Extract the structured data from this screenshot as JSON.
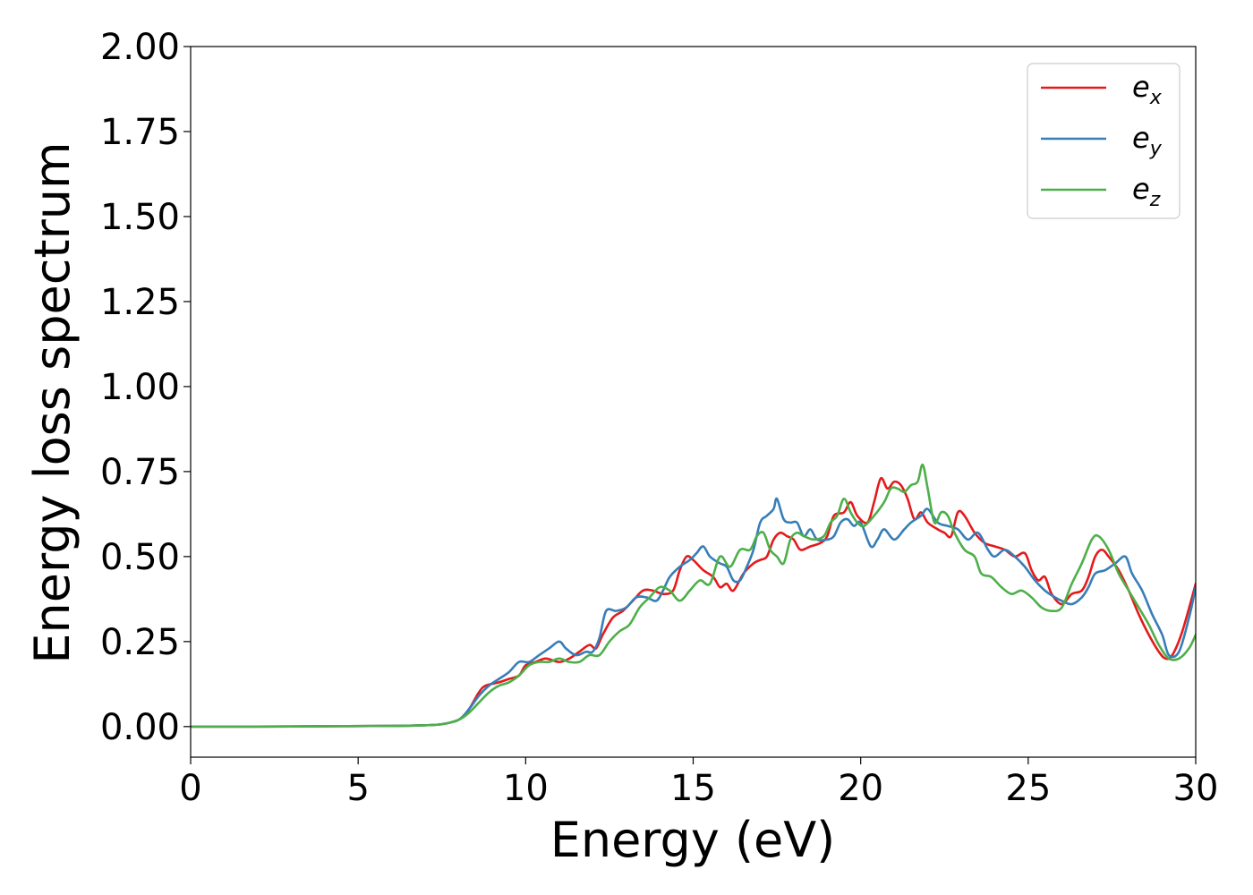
{
  "chart_data": {
    "type": "line",
    "title": "",
    "xlabel": "Energy (eV)",
    "ylabel": "Energy loss spectrum",
    "xlim": [
      0,
      30
    ],
    "ylim": [
      -0.09,
      2.0
    ],
    "xticks": [
      "0",
      "5",
      "10",
      "15",
      "20",
      "25",
      "30"
    ],
    "yticks": [
      "0.00",
      "0.25",
      "0.50",
      "0.75",
      "1.00",
      "1.25",
      "1.50",
      "1.75",
      "2.00"
    ],
    "grid": false,
    "legend_position": "top-right",
    "series": [
      {
        "name": "e_x",
        "legend_base": "e",
        "legend_sub": "x",
        "color": "#e41a1c",
        "points": [
          [
            0,
            0
          ],
          [
            2,
            0
          ],
          [
            4,
            0.001
          ],
          [
            6,
            0.002
          ],
          [
            7,
            0.004
          ],
          [
            7.5,
            0.007
          ],
          [
            8,
            0.02
          ],
          [
            8.3,
            0.05
          ],
          [
            8.6,
            0.1
          ],
          [
            8.8,
            0.12
          ],
          [
            9.2,
            0.13
          ],
          [
            9.5,
            0.14
          ],
          [
            9.8,
            0.15
          ],
          [
            10,
            0.18
          ],
          [
            10.3,
            0.19
          ],
          [
            10.6,
            0.2
          ],
          [
            11,
            0.19
          ],
          [
            11.3,
            0.2
          ],
          [
            11.6,
            0.22
          ],
          [
            11.9,
            0.24
          ],
          [
            12.1,
            0.23
          ],
          [
            12.3,
            0.27
          ],
          [
            12.6,
            0.32
          ],
          [
            12.9,
            0.34
          ],
          [
            13.2,
            0.37
          ],
          [
            13.5,
            0.4
          ],
          [
            13.8,
            0.4
          ],
          [
            14.1,
            0.39
          ],
          [
            14.4,
            0.4
          ],
          [
            14.6,
            0.46
          ],
          [
            14.8,
            0.5
          ],
          [
            15,
            0.49
          ],
          [
            15.3,
            0.46
          ],
          [
            15.6,
            0.44
          ],
          [
            15.8,
            0.41
          ],
          [
            16.0,
            0.42
          ],
          [
            16.2,
            0.4
          ],
          [
            16.5,
            0.45
          ],
          [
            16.8,
            0.48
          ],
          [
            17.0,
            0.49
          ],
          [
            17.2,
            0.5
          ],
          [
            17.4,
            0.55
          ],
          [
            17.6,
            0.57
          ],
          [
            17.8,
            0.56
          ],
          [
            18.0,
            0.55
          ],
          [
            18.2,
            0.52
          ],
          [
            18.5,
            0.53
          ],
          [
            18.8,
            0.54
          ],
          [
            19.0,
            0.56
          ],
          [
            19.2,
            0.62
          ],
          [
            19.5,
            0.63
          ],
          [
            19.7,
            0.66
          ],
          [
            19.9,
            0.62
          ],
          [
            20.2,
            0.6
          ],
          [
            20.4,
            0.66
          ],
          [
            20.6,
            0.73
          ],
          [
            20.8,
            0.7
          ],
          [
            21.0,
            0.72
          ],
          [
            21.2,
            0.71
          ],
          [
            21.4,
            0.67
          ],
          [
            21.6,
            0.61
          ],
          [
            21.8,
            0.63
          ],
          [
            22.0,
            0.6
          ],
          [
            22.3,
            0.58
          ],
          [
            22.5,
            0.57
          ],
          [
            22.7,
            0.56
          ],
          [
            22.9,
            0.63
          ],
          [
            23.1,
            0.62
          ],
          [
            23.4,
            0.57
          ],
          [
            23.7,
            0.54
          ],
          [
            24.0,
            0.53
          ],
          [
            24.3,
            0.52
          ],
          [
            24.6,
            0.5
          ],
          [
            24.9,
            0.51
          ],
          [
            25.1,
            0.46
          ],
          [
            25.3,
            0.43
          ],
          [
            25.5,
            0.44
          ],
          [
            25.7,
            0.39
          ],
          [
            26.0,
            0.36
          ],
          [
            26.3,
            0.39
          ],
          [
            26.6,
            0.4
          ],
          [
            26.8,
            0.44
          ],
          [
            27.0,
            0.5
          ],
          [
            27.2,
            0.52
          ],
          [
            27.4,
            0.5
          ],
          [
            27.7,
            0.46
          ],
          [
            28.0,
            0.4
          ],
          [
            28.3,
            0.33
          ],
          [
            28.6,
            0.27
          ],
          [
            28.9,
            0.22
          ],
          [
            29.1,
            0.2
          ],
          [
            29.3,
            0.21
          ],
          [
            29.6,
            0.28
          ],
          [
            30,
            0.42
          ]
        ]
      },
      {
        "name": "e_y",
        "legend_base": "e",
        "legend_sub": "y",
        "color": "#377eb8",
        "points": [
          [
            0,
            0
          ],
          [
            2,
            0
          ],
          [
            4,
            0.001
          ],
          [
            6,
            0.002
          ],
          [
            7,
            0.004
          ],
          [
            7.5,
            0.007
          ],
          [
            8,
            0.02
          ],
          [
            8.3,
            0.05
          ],
          [
            8.6,
            0.09
          ],
          [
            8.9,
            0.12
          ],
          [
            9.2,
            0.14
          ],
          [
            9.5,
            0.16
          ],
          [
            9.8,
            0.19
          ],
          [
            10.1,
            0.19
          ],
          [
            10.4,
            0.21
          ],
          [
            10.7,
            0.23
          ],
          [
            11.0,
            0.25
          ],
          [
            11.2,
            0.23
          ],
          [
            11.5,
            0.21
          ],
          [
            11.8,
            0.22
          ],
          [
            12.0,
            0.22
          ],
          [
            12.2,
            0.26
          ],
          [
            12.4,
            0.34
          ],
          [
            12.7,
            0.34
          ],
          [
            13.0,
            0.35
          ],
          [
            13.3,
            0.38
          ],
          [
            13.6,
            0.38
          ],
          [
            13.9,
            0.37
          ],
          [
            14.1,
            0.4
          ],
          [
            14.3,
            0.44
          ],
          [
            14.6,
            0.47
          ],
          [
            14.9,
            0.49
          ],
          [
            15.1,
            0.51
          ],
          [
            15.3,
            0.53
          ],
          [
            15.5,
            0.5
          ],
          [
            15.8,
            0.48
          ],
          [
            16.0,
            0.47
          ],
          [
            16.2,
            0.43
          ],
          [
            16.4,
            0.43
          ],
          [
            16.6,
            0.47
          ],
          [
            16.8,
            0.52
          ],
          [
            17.0,
            0.6
          ],
          [
            17.2,
            0.62
          ],
          [
            17.4,
            0.64
          ],
          [
            17.5,
            0.67
          ],
          [
            17.7,
            0.61
          ],
          [
            17.9,
            0.6
          ],
          [
            18.1,
            0.6
          ],
          [
            18.3,
            0.56
          ],
          [
            18.5,
            0.58
          ],
          [
            18.7,
            0.55
          ],
          [
            19.0,
            0.55
          ],
          [
            19.2,
            0.56
          ],
          [
            19.4,
            0.6
          ],
          [
            19.6,
            0.61
          ],
          [
            19.8,
            0.59
          ],
          [
            20.0,
            0.6
          ],
          [
            20.3,
            0.53
          ],
          [
            20.5,
            0.55
          ],
          [
            20.7,
            0.58
          ],
          [
            21.0,
            0.55
          ],
          [
            21.3,
            0.58
          ],
          [
            21.5,
            0.6
          ],
          [
            21.8,
            0.62
          ],
          [
            22.0,
            0.64
          ],
          [
            22.3,
            0.6
          ],
          [
            22.6,
            0.59
          ],
          [
            22.9,
            0.58
          ],
          [
            23.2,
            0.55
          ],
          [
            23.5,
            0.57
          ],
          [
            23.8,
            0.52
          ],
          [
            24.0,
            0.5
          ],
          [
            24.3,
            0.52
          ],
          [
            24.6,
            0.5
          ],
          [
            24.9,
            0.47
          ],
          [
            25.2,
            0.43
          ],
          [
            25.5,
            0.4
          ],
          [
            25.8,
            0.38
          ],
          [
            26.0,
            0.37
          ],
          [
            26.3,
            0.36
          ],
          [
            26.6,
            0.38
          ],
          [
            26.8,
            0.41
          ],
          [
            27.0,
            0.45
          ],
          [
            27.3,
            0.46
          ],
          [
            27.6,
            0.48
          ],
          [
            27.9,
            0.5
          ],
          [
            28.1,
            0.45
          ],
          [
            28.4,
            0.4
          ],
          [
            28.7,
            0.33
          ],
          [
            29.0,
            0.27
          ],
          [
            29.2,
            0.21
          ],
          [
            29.5,
            0.22
          ],
          [
            29.8,
            0.32
          ],
          [
            30,
            0.41
          ]
        ]
      },
      {
        "name": "e_z",
        "legend_base": "e",
        "legend_sub": "z",
        "color": "#4daf4a",
        "points": [
          [
            0,
            0
          ],
          [
            2,
            0
          ],
          [
            4,
            0.001
          ],
          [
            6,
            0.002
          ],
          [
            7,
            0.004
          ],
          [
            7.5,
            0.007
          ],
          [
            8,
            0.02
          ],
          [
            8.3,
            0.04
          ],
          [
            8.6,
            0.07
          ],
          [
            8.9,
            0.1
          ],
          [
            9.2,
            0.12
          ],
          [
            9.5,
            0.13
          ],
          [
            9.8,
            0.15
          ],
          [
            10.1,
            0.18
          ],
          [
            10.4,
            0.19
          ],
          [
            10.7,
            0.19
          ],
          [
            11.0,
            0.2
          ],
          [
            11.3,
            0.19
          ],
          [
            11.6,
            0.19
          ],
          [
            11.9,
            0.21
          ],
          [
            12.2,
            0.21
          ],
          [
            12.5,
            0.25
          ],
          [
            12.8,
            0.28
          ],
          [
            13.1,
            0.3
          ],
          [
            13.4,
            0.35
          ],
          [
            13.7,
            0.38
          ],
          [
            14.0,
            0.41
          ],
          [
            14.3,
            0.4
          ],
          [
            14.6,
            0.37
          ],
          [
            14.9,
            0.4
          ],
          [
            15.2,
            0.43
          ],
          [
            15.5,
            0.42
          ],
          [
            15.8,
            0.5
          ],
          [
            16.1,
            0.47
          ],
          [
            16.4,
            0.52
          ],
          [
            16.7,
            0.52
          ],
          [
            16.9,
            0.56
          ],
          [
            17.1,
            0.57
          ],
          [
            17.3,
            0.52
          ],
          [
            17.5,
            0.5
          ],
          [
            17.7,
            0.48
          ],
          [
            17.9,
            0.55
          ],
          [
            18.1,
            0.57
          ],
          [
            18.3,
            0.56
          ],
          [
            18.6,
            0.55
          ],
          [
            18.9,
            0.56
          ],
          [
            19.1,
            0.6
          ],
          [
            19.3,
            0.62
          ],
          [
            19.5,
            0.67
          ],
          [
            19.7,
            0.63
          ],
          [
            19.9,
            0.6
          ],
          [
            20.1,
            0.59
          ],
          [
            20.4,
            0.62
          ],
          [
            20.7,
            0.66
          ],
          [
            20.9,
            0.7
          ],
          [
            21.1,
            0.7
          ],
          [
            21.3,
            0.69
          ],
          [
            21.5,
            0.71
          ],
          [
            21.7,
            0.72
          ],
          [
            21.85,
            0.77
          ],
          [
            22.0,
            0.7
          ],
          [
            22.2,
            0.6
          ],
          [
            22.4,
            0.63
          ],
          [
            22.6,
            0.62
          ],
          [
            22.8,
            0.57
          ],
          [
            23.1,
            0.52
          ],
          [
            23.4,
            0.5
          ],
          [
            23.6,
            0.45
          ],
          [
            23.9,
            0.44
          ],
          [
            24.2,
            0.41
          ],
          [
            24.5,
            0.39
          ],
          [
            24.8,
            0.4
          ],
          [
            25.1,
            0.38
          ],
          [
            25.4,
            0.35
          ],
          [
            25.7,
            0.34
          ],
          [
            26.0,
            0.35
          ],
          [
            26.3,
            0.42
          ],
          [
            26.6,
            0.48
          ],
          [
            26.9,
            0.55
          ],
          [
            27.1,
            0.56
          ],
          [
            27.4,
            0.52
          ],
          [
            27.7,
            0.45
          ],
          [
            28.0,
            0.4
          ],
          [
            28.3,
            0.35
          ],
          [
            28.6,
            0.3
          ],
          [
            28.9,
            0.24
          ],
          [
            29.2,
            0.2
          ],
          [
            29.5,
            0.2
          ],
          [
            29.8,
            0.23
          ],
          [
            30,
            0.27
          ]
        ]
      }
    ]
  }
}
